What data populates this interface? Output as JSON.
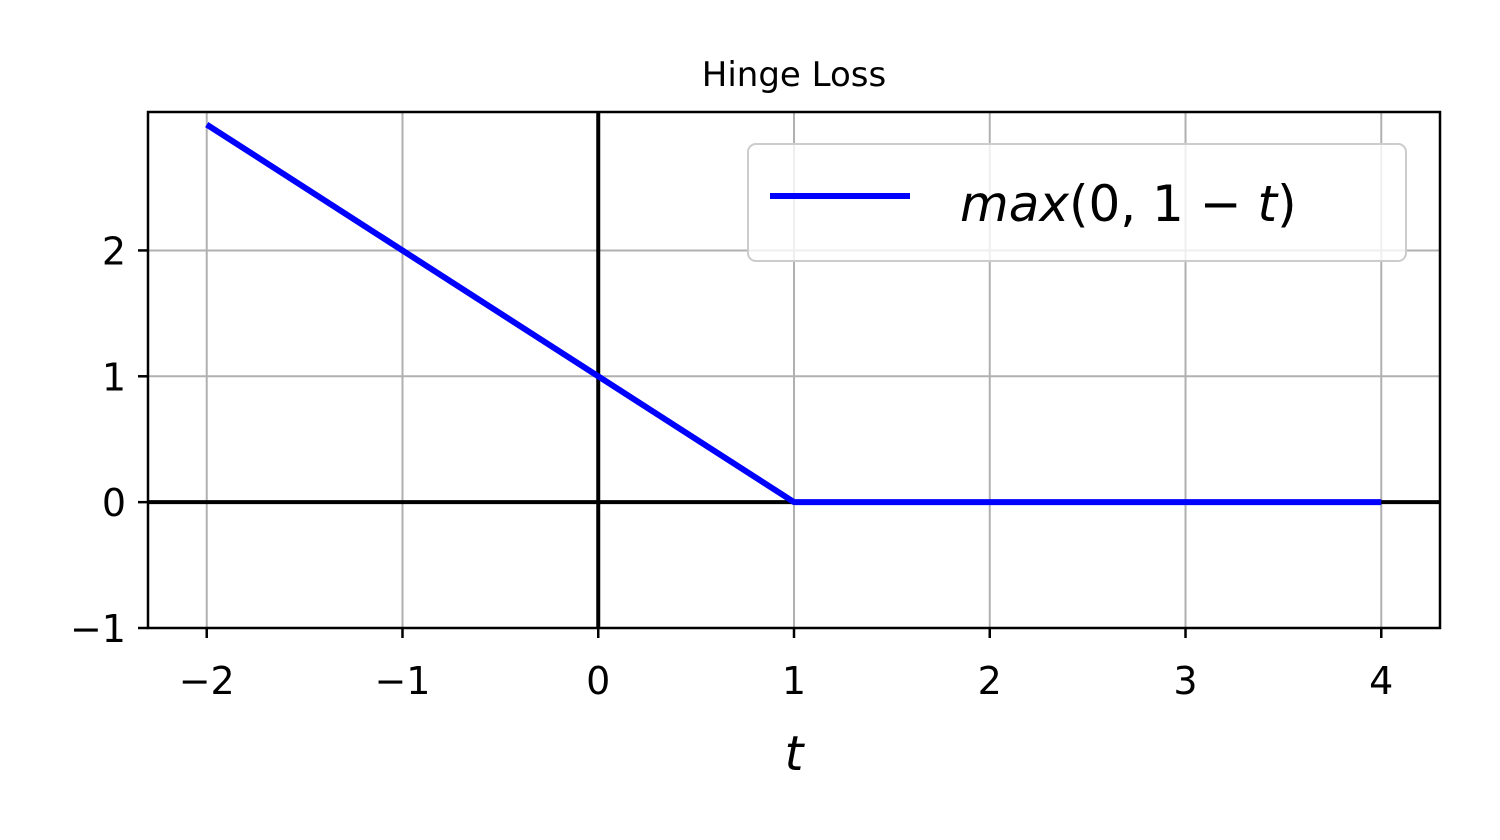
{
  "chart_data": {
    "type": "line",
    "title": "Hinge Loss",
    "xlabel": "t",
    "ylabel": "",
    "xlim": [
      -2.3,
      4.3
    ],
    "ylim": [
      -1,
      3.1
    ],
    "xticks": [
      -2,
      -1,
      0,
      1,
      2,
      3,
      4
    ],
    "yticks": [
      -1,
      0,
      1,
      2
    ],
    "xtick_labels": [
      "−2",
      "−1",
      "0",
      "1",
      "2",
      "3",
      "4"
    ],
    "ytick_labels": [
      "−1",
      "0",
      "1",
      "2"
    ],
    "grid": true,
    "zero_axes": true,
    "legend": {
      "position": "top-right"
    },
    "series": [
      {
        "name": "max(0, 1 − t)",
        "name_parts": {
          "fn": "max",
          "args": "(0, 1 − ",
          "var": "t",
          "close": ")"
        },
        "color": "#0000ff",
        "x": [
          -2,
          1,
          4
        ],
        "y": [
          3,
          0,
          0
        ]
      }
    ]
  }
}
